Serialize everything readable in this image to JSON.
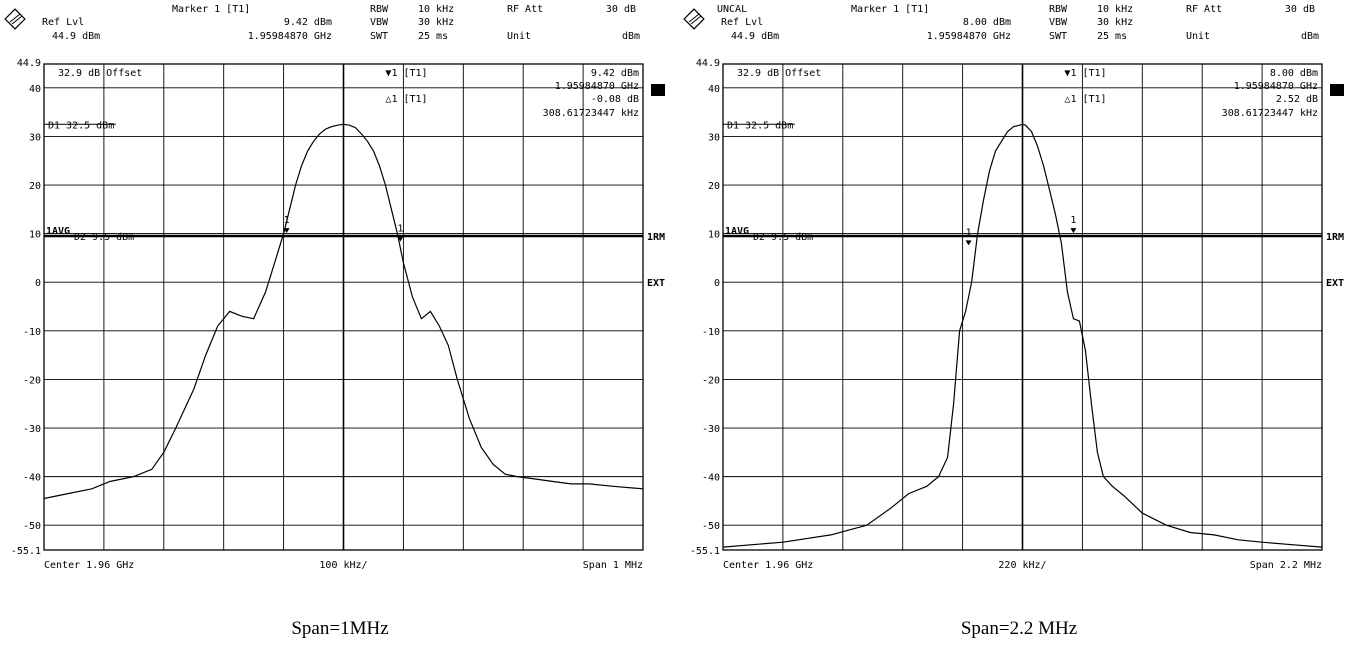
{
  "chart_data": [
    {
      "type": "line",
      "title": "",
      "xlabel": "",
      "ylabel": "",
      "ylim": [
        -55.1,
        44.9
      ],
      "xlim": [
        -5,
        5
      ],
      "x_unit_note": "100 kHz per division",
      "yticks": [
        "44.9",
        "40",
        "30",
        "20",
        "10",
        "0",
        "-10",
        "-20",
        "-30",
        "-40",
        "-50",
        "-55.1"
      ],
      "header": {
        "uncal": "",
        "marker_title": "Marker 1 [T1]",
        "marker_level": "9.42 dBm",
        "marker_freq": "1.95984870 GHz",
        "ref_label": "Ref Lvl",
        "ref_value": "44.9 dBm",
        "rbw_label": "RBW",
        "rbw_value": "10 kHz",
        "vbw_label": "VBW",
        "vbw_value": "30 kHz",
        "swt_label": "SWT",
        "swt_value": "25 ms",
        "att_label": "RF Att",
        "att_value": "30 dB",
        "unit_label": "Unit",
        "unit_value": "dBm"
      },
      "offset_text": "32.9 dB Offset",
      "marker_box": {
        "m1_label": "▼1 [T1]",
        "m1_level": "9.42 dBm",
        "m1_freq": "1.95984870 GHz",
        "d1_label": "△1 [T1]",
        "d1_level": "-0.08 dB",
        "d1_freq": "308.61723447 kHz"
      },
      "display_lines": {
        "d1_text": "D1 32.5 dBm",
        "d2_text": "D2 9.5 dBm",
        "avg_text": "1AVG"
      },
      "side_labels": {
        "a_box": "A",
        "rm": "1RM",
        "ext": "EXT"
      },
      "footer": {
        "center": "Center 1.96 GHz",
        "div": "100 kHz/",
        "span": "Span 1 MHz"
      },
      "marker_points": [
        {
          "x": -0.95,
          "y": 10.5
        },
        {
          "x": 0.95,
          "y": 8.8
        }
      ],
      "series": [
        {
          "x": [
            -5,
            -4.6,
            -4.2,
            -3.9,
            -3.5,
            -3.2,
            -3.0,
            -2.8,
            -2.5,
            -2.3,
            -2.1,
            -1.9,
            -1.7,
            -1.5,
            -1.3,
            -1.15,
            -1.0,
            -0.9,
            -0.8,
            -0.7,
            -0.6,
            -0.5,
            -0.4,
            -0.3,
            -0.2,
            -0.1,
            0,
            0.1,
            0.2,
            0.3,
            0.4,
            0.5,
            0.6,
            0.7,
            0.8,
            0.9,
            1.0,
            1.15,
            1.3,
            1.45,
            1.6,
            1.75,
            1.9,
            2.1,
            2.3,
            2.5,
            2.7,
            2.9,
            3.2,
            3.5,
            3.8,
            4.1,
            4.5,
            5
          ],
          "y": [
            -44.5,
            -43.5,
            -42.5,
            -41,
            -40,
            -38.5,
            -35,
            -30,
            -22,
            -15,
            -9,
            -6,
            -7,
            -7.5,
            -2,
            4,
            10,
            15,
            20,
            24,
            27,
            29,
            30.5,
            31.5,
            32,
            32.3,
            32.5,
            32.3,
            31.8,
            30.5,
            29,
            27,
            24,
            20,
            15,
            10,
            4,
            -3,
            -7.5,
            -6,
            -9,
            -13,
            -20,
            -28,
            -34,
            -37.5,
            -39.5,
            -40,
            -40.5,
            -41,
            -41.5,
            -41.5,
            -42,
            -42.5
          ]
        }
      ]
    },
    {
      "type": "line",
      "title": "",
      "xlabel": "",
      "ylabel": "",
      "ylim": [
        -55.1,
        44.9
      ],
      "xlim": [
        -5,
        5
      ],
      "x_unit_note": "220 kHz per division",
      "yticks": [
        "44.9",
        "40",
        "30",
        "20",
        "10",
        "0",
        "-10",
        "-20",
        "-30",
        "-40",
        "-50",
        "-55.1"
      ],
      "header": {
        "uncal": "UNCAL",
        "marker_title": "Marker 1 [T1]",
        "marker_level": "8.00 dBm",
        "marker_freq": "1.95984870 GHz",
        "ref_label": "Ref Lvl",
        "ref_value": "44.9 dBm",
        "rbw_label": "RBW",
        "rbw_value": "10 kHz",
        "vbw_label": "VBW",
        "vbw_value": "30 kHz",
        "swt_label": "SWT",
        "swt_value": "25 ms",
        "att_label": "RF Att",
        "att_value": "30 dB",
        "unit_label": "Unit",
        "unit_value": "dBm"
      },
      "offset_text": "32.9 dB Offset",
      "marker_box": {
        "m1_label": "▼1 [T1]",
        "m1_level": "8.00 dBm",
        "m1_freq": "1.95984870 GHz",
        "d1_label": "△1 [T1]",
        "d1_level": "2.52 dB",
        "d1_freq": "308.61723447 kHz"
      },
      "display_lines": {
        "d1_text": "D1 32.5 dBm",
        "d2_text": "D2 9.5 dBm",
        "avg_text": "1AVG"
      },
      "side_labels": {
        "a_box": "A",
        "rm": "1RM",
        "ext": "EXT"
      },
      "footer": {
        "center": "Center 1.96 GHz",
        "div": "220 kHz/",
        "span": "Span 2.2 MHz"
      },
      "marker_points": [
        {
          "x": -0.9,
          "y": 8
        },
        {
          "x": 0.85,
          "y": 10.5
        }
      ],
      "series": [
        {
          "x": [
            -5,
            -4,
            -3.2,
            -2.6,
            -2.2,
            -1.9,
            -1.6,
            -1.4,
            -1.25,
            -1.15,
            -1.05,
            -0.95,
            -0.85,
            -0.75,
            -0.65,
            -0.55,
            -0.45,
            -0.35,
            -0.25,
            -0.15,
            -0.05,
            0,
            0.05,
            0.15,
            0.25,
            0.35,
            0.45,
            0.55,
            0.65,
            0.75,
            0.85,
            0.95,
            1.05,
            1.15,
            1.25,
            1.35,
            1.5,
            1.7,
            2.0,
            2.4,
            2.8,
            3.2,
            3.6,
            4.0,
            4.5,
            5
          ],
          "y": [
            -54.5,
            -53.5,
            -52,
            -50,
            -46.5,
            -43.5,
            -42,
            -40,
            -36,
            -25,
            -10,
            -6,
            0,
            10,
            17,
            23,
            27,
            29,
            31,
            32,
            32.3,
            32.5,
            32.3,
            31,
            28,
            24,
            19,
            14,
            8,
            -2,
            -7.5,
            -8,
            -14,
            -25,
            -35,
            -40,
            -42,
            -44,
            -47.5,
            -50,
            -51.5,
            -52,
            -53,
            -53.5,
            -54,
            -54.5
          ]
        }
      ]
    }
  ],
  "captions": {
    "left": "Span=1MHz",
    "right": "Span=2.2 MHz"
  }
}
